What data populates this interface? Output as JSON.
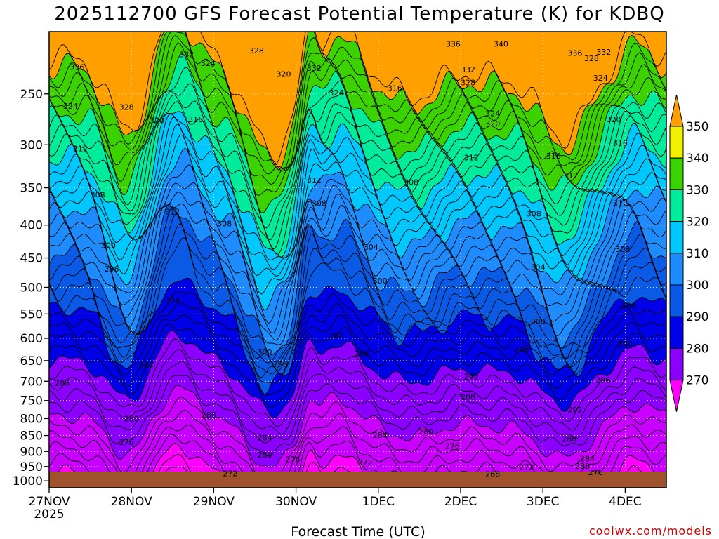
{
  "chart_data": {
    "type": "heatmap",
    "title": "2025112700 GFS Forecast Potential Temperature (K) for KDBQ",
    "xlabel": "Forecast Time (UTC)",
    "ylabel": "",
    "x_tick_labels": [
      "27NOV",
      "28NOV",
      "29NOV",
      "30NOV",
      "1DEC",
      "2DEC",
      "3DEC",
      "4DEC"
    ],
    "x_tick_sublabel": "2025",
    "x_range_days": [
      0,
      7.5
    ],
    "y_tick_labels": [
      250,
      300,
      350,
      400,
      450,
      500,
      550,
      600,
      650,
      700,
      750,
      800,
      850,
      900,
      950,
      1000
    ],
    "y_range_hpa": [
      200,
      1025
    ],
    "y_scale": "log-pressure",
    "grid": true,
    "colorbar": {
      "levels": [
        270,
        280,
        290,
        300,
        310,
        320,
        330,
        340,
        350
      ],
      "colors": [
        "#ff00ff",
        "#c800ff",
        "#8c00ff",
        "#0000e6",
        "#0a5ae6",
        "#1e8cff",
        "#00c8ff",
        "#00eb9b",
        "#3cd200",
        "#f0f000",
        "#ffa000"
      ],
      "placement": "right"
    },
    "ground_color": "#a0522d",
    "annotations": [
      {
        "text": "336",
        "day": 0.34,
        "hpa": 227
      },
      {
        "text": "332",
        "day": 1.67,
        "hpa": 217
      },
      {
        "text": "324",
        "day": 1.93,
        "hpa": 224
      },
      {
        "text": "328",
        "day": 2.52,
        "hpa": 214
      },
      {
        "text": "336",
        "day": 4.91,
        "hpa": 209
      },
      {
        "text": "340",
        "day": 5.49,
        "hpa": 209
      },
      {
        "text": "336",
        "day": 6.39,
        "hpa": 216
      },
      {
        "text": "328",
        "day": 6.59,
        "hpa": 220
      },
      {
        "text": "332",
        "day": 6.74,
        "hpa": 215
      },
      {
        "text": "332",
        "day": 3.22,
        "hpa": 228
      },
      {
        "text": "332",
        "day": 5.09,
        "hpa": 229
      },
      {
        "text": "328",
        "day": 5.09,
        "hpa": 240
      },
      {
        "text": "324",
        "day": 6.7,
        "hpa": 236
      },
      {
        "text": "320",
        "day": 2.85,
        "hpa": 233
      },
      {
        "text": "324",
        "day": 3.49,
        "hpa": 249
      },
      {
        "text": "316",
        "day": 4.2,
        "hpa": 245
      },
      {
        "text": "324",
        "day": 0.26,
        "hpa": 261
      },
      {
        "text": "328",
        "day": 0.94,
        "hpa": 262
      },
      {
        "text": "320",
        "day": 1.31,
        "hpa": 275
      },
      {
        "text": "316",
        "day": 1.78,
        "hpa": 274
      },
      {
        "text": "324",
        "day": 5.39,
        "hpa": 268
      },
      {
        "text": "320",
        "day": 5.39,
        "hpa": 278
      },
      {
        "text": "320",
        "day": 6.86,
        "hpa": 274
      },
      {
        "text": "316",
        "day": 6.94,
        "hpa": 298
      },
      {
        "text": "312",
        "day": 0.38,
        "hpa": 304
      },
      {
        "text": "312",
        "day": 5.13,
        "hpa": 314
      },
      {
        "text": "316",
        "day": 6.13,
        "hpa": 312
      },
      {
        "text": "312",
        "day": 6.34,
        "hpa": 335
      },
      {
        "text": "312",
        "day": 3.22,
        "hpa": 341
      },
      {
        "text": "308",
        "day": 4.4,
        "hpa": 343
      },
      {
        "text": "308",
        "day": 0.59,
        "hpa": 359
      },
      {
        "text": "312",
        "day": 1.5,
        "hpa": 381
      },
      {
        "text": "308",
        "day": 2.13,
        "hpa": 398
      },
      {
        "text": "308",
        "day": 3.28,
        "hpa": 370
      },
      {
        "text": "308",
        "day": 5.89,
        "hpa": 384
      },
      {
        "text": "312",
        "day": 6.94,
        "hpa": 370
      },
      {
        "text": "304",
        "day": 3.91,
        "hpa": 433
      },
      {
        "text": "308",
        "day": 6.97,
        "hpa": 436
      },
      {
        "text": "300",
        "day": 0.72,
        "hpa": 430
      },
      {
        "text": "296",
        "day": 0.76,
        "hpa": 468
      },
      {
        "text": "304",
        "day": 5.94,
        "hpa": 465
      },
      {
        "text": "300",
        "day": 4.02,
        "hpa": 488
      },
      {
        "text": "304",
        "day": 1.5,
        "hpa": 523
      },
      {
        "text": "304",
        "day": 7.04,
        "hpa": 534
      },
      {
        "text": "300",
        "day": 5.94,
        "hpa": 565
      },
      {
        "text": "292",
        "day": 3.49,
        "hpa": 594
      },
      {
        "text": "300",
        "day": 7.0,
        "hpa": 612
      },
      {
        "text": "296",
        "day": 5.74,
        "hpa": 625
      },
      {
        "text": "300",
        "day": 2.62,
        "hpa": 629
      },
      {
        "text": "288",
        "day": 3.8,
        "hpa": 633
      },
      {
        "text": "296",
        "day": 2.81,
        "hpa": 658
      },
      {
        "text": "284",
        "day": 1.18,
        "hpa": 661
      },
      {
        "text": "292",
        "day": 5.13,
        "hpa": 688
      },
      {
        "text": "296",
        "day": 6.73,
        "hpa": 697
      },
      {
        "text": "288",
        "day": 0.16,
        "hpa": 704
      },
      {
        "text": "288",
        "day": 5.09,
        "hpa": 740
      },
      {
        "text": "292",
        "day": 6.39,
        "hpa": 774
      },
      {
        "text": "288",
        "day": 1.94,
        "hpa": 789
      },
      {
        "text": "280",
        "day": 1.0,
        "hpa": 800
      },
      {
        "text": "280",
        "day": 4.58,
        "hpa": 838
      },
      {
        "text": "284",
        "day": 4.02,
        "hpa": 849
      },
      {
        "text": "284",
        "day": 2.62,
        "hpa": 856
      },
      {
        "text": "288",
        "day": 6.32,
        "hpa": 861
      },
      {
        "text": "276",
        "day": 0.94,
        "hpa": 871
      },
      {
        "text": "276",
        "day": 4.9,
        "hpa": 883
      },
      {
        "text": "280",
        "day": 2.62,
        "hpa": 911
      },
      {
        "text": "284",
        "day": 6.54,
        "hpa": 924
      },
      {
        "text": "276",
        "day": 2.96,
        "hpa": 926
      },
      {
        "text": "272",
        "day": 3.84,
        "hpa": 936
      },
      {
        "text": "280",
        "day": 6.48,
        "hpa": 948
      },
      {
        "text": "272",
        "day": 5.8,
        "hpa": 952
      },
      {
        "text": "276",
        "day": 6.64,
        "hpa": 970
      },
      {
        "text": "272",
        "day": 2.2,
        "hpa": 974
      },
      {
        "text": "268",
        "day": 5.39,
        "hpa": 976
      }
    ]
  },
  "watermark": {
    "text": "coolwx.com/models",
    "color": "#d00000"
  }
}
